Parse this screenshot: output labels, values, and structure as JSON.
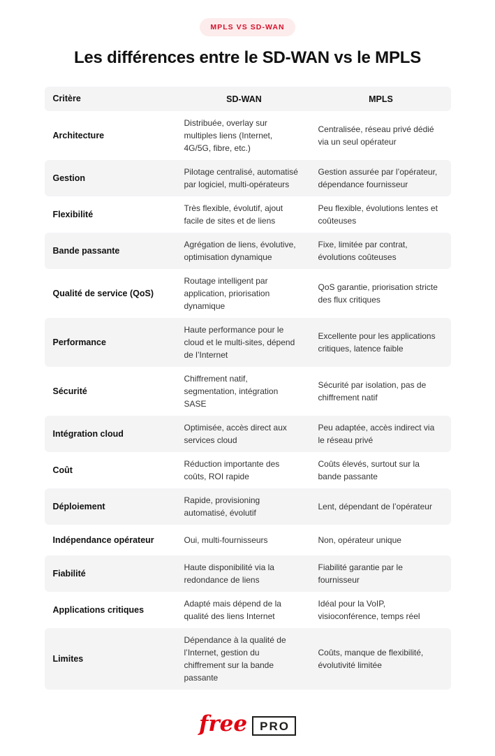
{
  "badge": {
    "label": "MPLS VS SD-WAN"
  },
  "title": "Les différences entre le SD-WAN vs le MPLS",
  "colors": {
    "accent_red": "#e1000f",
    "badge_bg": "#fdecec",
    "badge_text": "#d6112b",
    "row_alt_bg": "#f4f4f5"
  },
  "table": {
    "headers": {
      "critere": "Critère",
      "sdwan": "SD-WAN",
      "mpls": "MPLS"
    },
    "rows": [
      {
        "critere": "Architecture",
        "sdwan": "Distribuée, overlay sur multiples liens (Internet, 4G/5G, fibre, etc.)",
        "mpls": "Centralisée, réseau privé dédié via un seul opérateur"
      },
      {
        "critere": "Gestion",
        "sdwan": "Pilotage centralisé, automatisé par logiciel, multi-opérateurs",
        "mpls": "Gestion assurée par l’opérateur, dépendance fournisseur"
      },
      {
        "critere": "Flexibilité",
        "sdwan": "Très flexible, évolutif, ajout facile de sites et de liens",
        "mpls": "Peu flexible, évolutions lentes et coûteuses"
      },
      {
        "critere": "Bande passante",
        "sdwan": "Agrégation de liens, évolutive, optimisation dynamique",
        "mpls": "Fixe, limitée par contrat, évolutions coûteuses"
      },
      {
        "critere": "Qualité de service (QoS)",
        "sdwan": "Routage intelligent par application, priorisation dynamique",
        "mpls": "QoS garantie, priorisation stricte des flux critiques"
      },
      {
        "critere": "Performance",
        "sdwan": "Haute performance pour le cloud et le multi-sites, dépend de l’Internet",
        "mpls": "Excellente pour les applications critiques, latence faible"
      },
      {
        "critere": "Sécurité",
        "sdwan": "Chiffrement natif, segmentation, intégration SASE",
        "mpls": "Sécurité par isolation, pas de chiffrement natif"
      },
      {
        "critere": "Intégration cloud",
        "sdwan": "Optimisée, accès direct aux services cloud",
        "mpls": "Peu adaptée, accès indirect via le réseau privé"
      },
      {
        "critere": "Coût",
        "sdwan": "Réduction importante des coûts, ROI rapide",
        "mpls": "Coûts élevés, surtout sur la bande passante"
      },
      {
        "critere": "Déploiement",
        "sdwan": "Rapide, provisioning automatisé, évolutif",
        "mpls": "Lent, dépendant de l’opérateur"
      },
      {
        "critere": "Indépendance opérateur",
        "sdwan": "Oui, multi-fournisseurs",
        "mpls": "Non, opérateur unique"
      },
      {
        "critere": "Fiabilité",
        "sdwan": "Haute disponibilité via la redondance de liens",
        "mpls": "Fiabilité garantie par le fournisseur"
      },
      {
        "critere": "Applications critiques",
        "sdwan": "Adapté mais dépend de la qualité des liens Internet",
        "mpls": "Idéal pour la VoIP, visioconférence, temps réel"
      },
      {
        "critere": "Limites",
        "sdwan": "Dépendance à la qualité de l’Internet, gestion du chiffrement sur la bande passante",
        "mpls": "Coûts, manque de flexibilité, évolutivité limitée"
      }
    ]
  },
  "footer": {
    "brand": "free",
    "brand_suffix": "PRO"
  }
}
